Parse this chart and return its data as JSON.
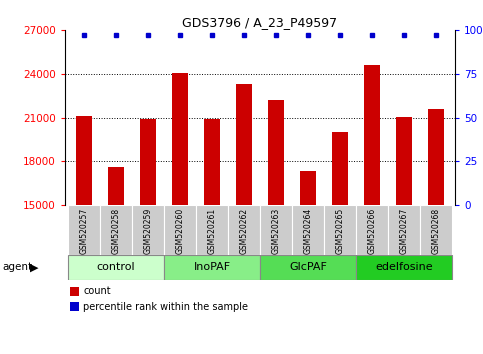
{
  "title": "GDS3796 / A_23_P49597",
  "samples": [
    "GSM520257",
    "GSM520258",
    "GSM520259",
    "GSM520260",
    "GSM520261",
    "GSM520262",
    "GSM520263",
    "GSM520264",
    "GSM520265",
    "GSM520266",
    "GSM520267",
    "GSM520268"
  ],
  "bar_values": [
    21100,
    17600,
    20900,
    24050,
    20900,
    23300,
    22200,
    17300,
    20000,
    24600,
    21050,
    21600
  ],
  "percentile_values": [
    100,
    100,
    100,
    100,
    100,
    100,
    100,
    100,
    100,
    100,
    100,
    100
  ],
  "bar_color": "#cc0000",
  "dot_color": "#0000cc",
  "ylim_left": [
    15000,
    27000
  ],
  "ylim_right": [
    0,
    100
  ],
  "yticks_left": [
    15000,
    18000,
    21000,
    24000,
    27000
  ],
  "yticks_right": [
    0,
    25,
    50,
    75,
    100
  ],
  "groups": [
    {
      "label": "control",
      "start": 0,
      "end": 3,
      "color": "#ccffcc"
    },
    {
      "label": "InoPAF",
      "start": 3,
      "end": 6,
      "color": "#88ee88"
    },
    {
      "label": "GlcPAF",
      "start": 6,
      "end": 9,
      "color": "#55dd55"
    },
    {
      "label": "edelfosine",
      "start": 9,
      "end": 12,
      "color": "#22cc22"
    }
  ],
  "agent_label": "agent",
  "legend_count_label": "count",
  "legend_pct_label": "percentile rank within the sample",
  "bg_color": "#ffffff",
  "sample_bg_color": "#cccccc",
  "bar_width": 0.5,
  "grid_color": "#000000",
  "border_color": "#888888"
}
